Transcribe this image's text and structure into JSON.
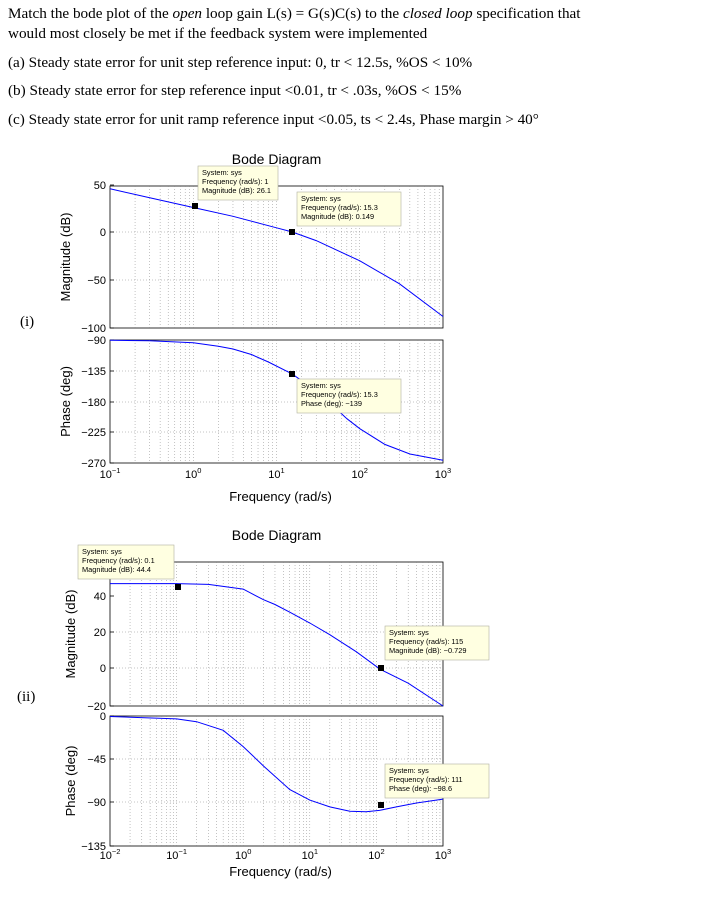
{
  "question": {
    "pre": "Match the bode plot of the ",
    "open": "open",
    "mid": " loop gain L(s) = G(s)C(s) to the ",
    "closed": "closed loop",
    "post": " specification that",
    "line2": "would most closely be met if the feedback system were implemented"
  },
  "options": [
    "(a) Steady state error for unit step reference input: 0, tr < 12.5s, %OS < 10%",
    "(b) Steady state error for step reference input <0.01, tr < .03s, %OS < 15%",
    "(c) Steady state error for unit ramp reference input <0.05, ts < 2.4s, Phase margin > 40°"
  ],
  "plot_labels": [
    "(i)",
    "(ii)"
  ],
  "chart_data": [
    {
      "type": "line",
      "title": "Bode Diagram",
      "xlabel": "Frequency (rad/s)",
      "xscale": "log",
      "xticks": [
        "10^-1",
        "10^0",
        "10^1",
        "10^2",
        "10^3"
      ],
      "xlim": [
        0.1,
        1000
      ],
      "magnitude": {
        "ylabel": "Magnitude (dB)",
        "yticks": [
          "50",
          "0",
          "-50",
          "-100"
        ],
        "ylim": [
          -100,
          50
        ],
        "x": [
          0.1,
          0.3,
          1,
          3,
          10,
          15.3,
          30,
          100,
          300,
          1000
        ],
        "y": [
          46,
          36.5,
          26.1,
          16.7,
          4.5,
          0.149,
          -9,
          -30,
          -54,
          -88
        ]
      },
      "phase": {
        "ylabel": "Phase (deg)",
        "yticks": [
          "-90",
          "-135",
          "-180",
          "-225",
          "-270"
        ],
        "ylim": [
          -270,
          -90
        ],
        "x": [
          0.1,
          0.3,
          1,
          2,
          3,
          5,
          8,
          15.3,
          25,
          40,
          70,
          100,
          200,
          400,
          1000
        ],
        "y": [
          -90.5,
          -91,
          -94,
          -99,
          -103,
          -111,
          -122,
          -139,
          -157,
          -177,
          -205,
          -220,
          -243,
          -257,
          -266
        ]
      },
      "datatips": [
        {
          "lines": [
            "System: sys",
            "Frequency (rad/s): 1",
            "Magnitude (dB): 26.1"
          ]
        },
        {
          "lines": [
            "System: sys",
            "Frequency (rad/s): 15.3",
            "Magnitude (dB): 0.149"
          ]
        },
        {
          "lines": [
            "System: sys",
            "Frequency (rad/s): 15.3",
            "Phase (deg): -139"
          ]
        }
      ],
      "grid": true,
      "line_color": "#0000ff"
    },
    {
      "type": "line",
      "title": "Bode Diagram",
      "xlabel": "Frequency (rad/s)",
      "xscale": "log",
      "xticks": [
        "10^-2",
        "10^-1",
        "10^0",
        "10^1",
        "10^2",
        "10^3"
      ],
      "xlim": [
        0.01,
        1000
      ],
      "magnitude": {
        "ylabel": "Magnitude (dB)",
        "yticks": [
          "40",
          "20",
          "0",
          "-20"
        ],
        "ylim": [
          -20,
          50
        ],
        "x": [
          0.01,
          0.1,
          0.3,
          1,
          2,
          3,
          5,
          10,
          20,
          50,
          115,
          300,
          1000
        ],
        "y": [
          44.4,
          44.4,
          44,
          41.5,
          38,
          35.3,
          31,
          25,
          18.5,
          9,
          -0.729,
          -8,
          -20
        ]
      },
      "phase": {
        "ylabel": "Phase (deg)",
        "yticks": [
          "0",
          "-45",
          "-90",
          "-135"
        ],
        "ylim": [
          -135,
          0
        ],
        "x": [
          0.01,
          0.1,
          0.2,
          0.5,
          1,
          2,
          5,
          10,
          20,
          40,
          70,
          111,
          200,
          400,
          1000
        ],
        "y": [
          -0.5,
          -3,
          -6,
          -15,
          -32,
          -52,
          -77,
          -88,
          -95,
          -99.5,
          -100,
          -98.6,
          -95,
          -91,
          -87
        ]
      },
      "datatips": [
        {
          "lines": [
            "System: sys",
            "Frequency (rad/s): 0.1",
            "Magnitude (dB): 44.4"
          ]
        },
        {
          "lines": [
            "System: sys",
            "Frequency (rad/s): 115",
            "Magnitude (dB): -0.729"
          ]
        },
        {
          "lines": [
            "System: sys",
            "Frequency (rad/s): 111",
            "Phase (deg): -98.6"
          ]
        }
      ],
      "grid": true,
      "line_color": "#0000ff"
    }
  ]
}
